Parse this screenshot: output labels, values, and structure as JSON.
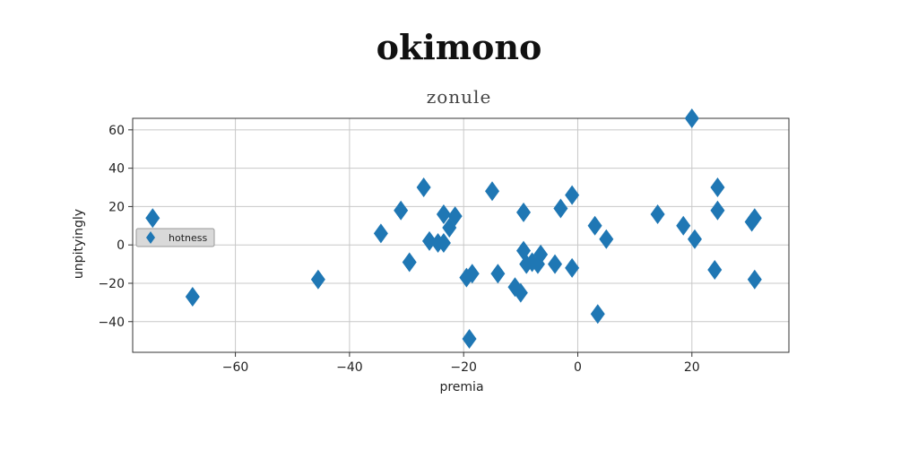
{
  "figure": {
    "suptitle": "okimono"
  },
  "chart_data": {
    "type": "scatter",
    "title": "zonule",
    "xlabel": "premia",
    "ylabel": "unpityingly",
    "xlim": [
      -78,
      37
    ],
    "ylim": [
      -56,
      66
    ],
    "xticks": [
      -60,
      -40,
      -20,
      0,
      20
    ],
    "yticks": [
      -40,
      -20,
      0,
      20,
      40,
      60
    ],
    "grid": true,
    "legend_position": "center-left",
    "series": [
      {
        "name": "hotness",
        "marker": "diamond",
        "color": "#1f77b4",
        "x": [
          -74.5,
          -67.5,
          -45.5,
          -34.5,
          -31,
          -29.5,
          -27,
          -26,
          -24.5,
          -23.5,
          -23.5,
          -22.5,
          -21.5,
          -19.5,
          -19,
          -18.5,
          -15,
          -14,
          -11,
          -10,
          -9.5,
          -9.5,
          -9,
          -8,
          -7,
          -6.5,
          -4,
          -3,
          -1,
          -1,
          3,
          3.5,
          5,
          14,
          18.5,
          20,
          20.5,
          24,
          24.5,
          24.5,
          30.5,
          31,
          31
        ],
        "y": [
          14,
          -27,
          -18,
          6,
          18,
          -9,
          30,
          2,
          1,
          16,
          1,
          9,
          15,
          -17,
          -49,
          -15,
          28,
          -15,
          -22,
          -25,
          17,
          -3,
          -10,
          -9,
          -10,
          -5,
          -10,
          19,
          -12,
          26,
          10,
          -36,
          3,
          16,
          10,
          66,
          3,
          -13,
          30,
          18,
          12,
          14,
          -18
        ]
      }
    ]
  }
}
